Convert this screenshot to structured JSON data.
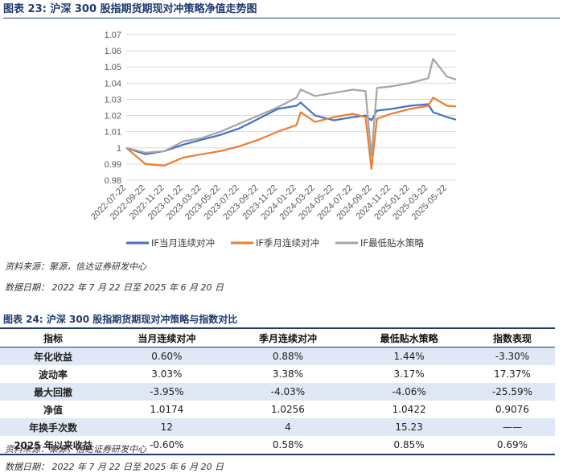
{
  "figure23": {
    "title": "图表 23:  沪深 300 股指期货期现对冲策略净值走势图",
    "source": "资料来源：聚源，信达证券研发中心",
    "data_date": "数据日期：  2022 年 7 月 22 日至 2025 年 6 月 20 日"
  },
  "chart_data": {
    "type": "line",
    "title": "",
    "xlabel": "",
    "ylabel": "",
    "ylim": [
      0.98,
      1.07
    ],
    "yticks": [
      "0.98",
      "0.99",
      "1",
      "1.01",
      "1.02",
      "1.03",
      "1.04",
      "1.05",
      "1.06",
      "1.07"
    ],
    "x_ticks": [
      "2022-07-22",
      "2022-09-22",
      "2022-11-22",
      "2023-01-22",
      "2023-03-22",
      "2023-05-22",
      "2023-07-22",
      "2023-09-22",
      "2023-11-22",
      "2024-01-22",
      "2024-03-22",
      "2024-05-22",
      "2024-07-22",
      "2024-09-22",
      "2024-11-22",
      "2025-01-22",
      "2025-03-22",
      "2025-05-22"
    ],
    "x": [
      "2022-07-22",
      "2022-09-22",
      "2022-11-22",
      "2023-01-22",
      "2023-03-22",
      "2023-05-22",
      "2023-07-22",
      "2023-09-22",
      "2023-11-22",
      "2024-01-22",
      "2024-02-05",
      "2024-03-22",
      "2024-05-22",
      "2024-07-22",
      "2024-09-01",
      "2024-09-20",
      "2024-10-08",
      "2024-11-22",
      "2025-01-22",
      "2025-03-22",
      "2025-04-07",
      "2025-05-22",
      "2025-06-20"
    ],
    "legend_position": "bottom",
    "series": [
      {
        "name": "IF当月连续对冲",
        "color": "#4472C4",
        "values": [
          1.0,
          0.996,
          0.998,
          1.002,
          1.005,
          1.008,
          1.012,
          1.018,
          1.024,
          1.026,
          1.028,
          1.02,
          1.017,
          1.019,
          1.02,
          1.017,
          1.023,
          1.024,
          1.026,
          1.027,
          1.022,
          1.019,
          1.0174
        ]
      },
      {
        "name": "IF季月连续对冲",
        "color": "#ED7D31",
        "values": [
          1.0,
          0.99,
          0.989,
          0.994,
          0.996,
          0.998,
          1.001,
          1.005,
          1.01,
          1.014,
          1.022,
          1.016,
          1.019,
          1.021,
          1.019,
          0.987,
          1.018,
          1.021,
          1.024,
          1.026,
          1.031,
          1.026,
          1.0256
        ]
      },
      {
        "name": "IF最低贴水策略",
        "color": "#A5A5A5",
        "values": [
          1.0,
          0.997,
          0.998,
          1.004,
          1.006,
          1.01,
          1.015,
          1.02,
          1.025,
          1.031,
          1.036,
          1.032,
          1.034,
          1.036,
          1.035,
          0.995,
          1.037,
          1.038,
          1.04,
          1.043,
          1.055,
          1.044,
          1.0422
        ]
      }
    ]
  },
  "table24": {
    "title": "图表 24:  沪深 300 股指期货期现对冲策略与指数对比",
    "headers": [
      "指标",
      "当月连续对冲",
      "季月连续对冲",
      "最低贴水策略",
      "指数表现"
    ],
    "rows": [
      [
        "年化收益",
        "0.60%",
        "0.88%",
        "1.44%",
        "-3.30%"
      ],
      [
        "波动率",
        "3.03%",
        "3.38%",
        "3.17%",
        "17.37%"
      ],
      [
        "最大回撤",
        "-3.95%",
        "-4.03%",
        "-4.06%",
        "-25.59%"
      ],
      [
        "净值",
        "1.0174",
        "1.0256",
        "1.0422",
        "0.9076"
      ],
      [
        "年换手次数",
        "12",
        "4",
        "15.23",
        "——"
      ],
      [
        "2025 年以来收益",
        "-0.60%",
        "0.58%",
        "0.85%",
        "0.69%"
      ]
    ],
    "source": "资料来源：聚源，信达证券研发中心",
    "data_date": "数据日期：  2022 年 7 月 22 日至 2025 年 6 月 20 日"
  }
}
